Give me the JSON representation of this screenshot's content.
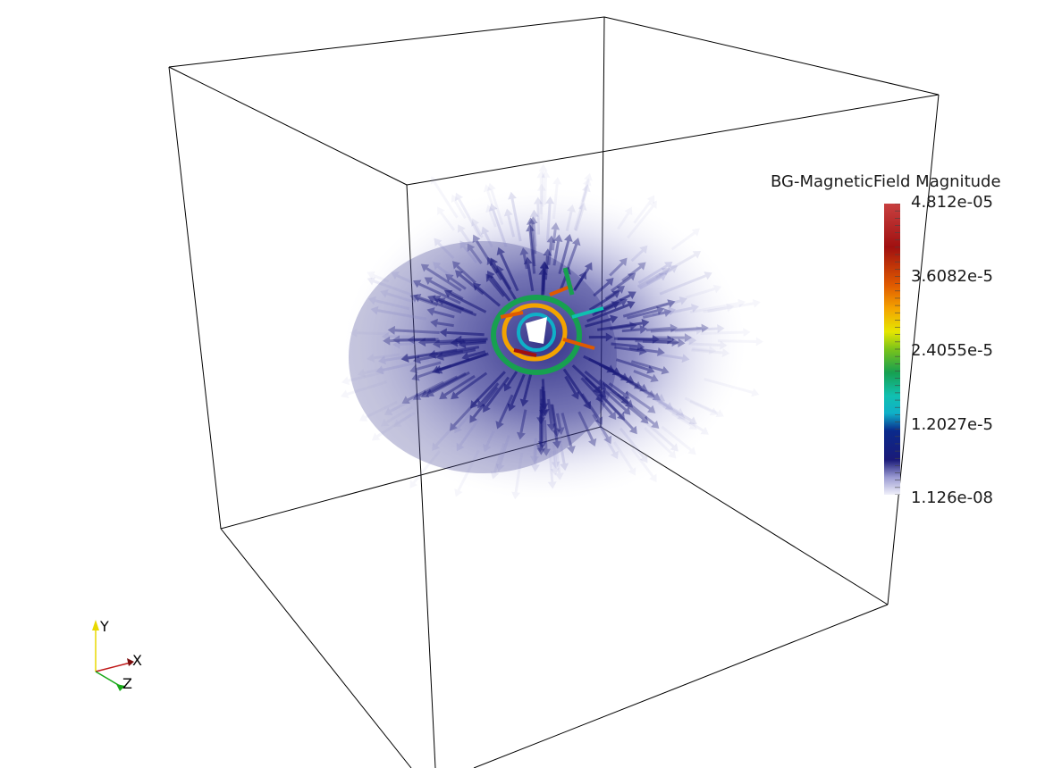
{
  "legend": {
    "title": "BG-MagneticField Magnitude",
    "labels": [
      "4.812e-05",
      "3.6082e-5",
      "2.4055e-5",
      "1.2027e-5",
      "1.126e-08"
    ],
    "colormap": [
      "#f5f5fb",
      "#9a9ad2",
      "#1a1a78",
      "#0a2a8c",
      "#0fb0c8",
      "#10c0b0",
      "#17a050",
      "#7ac31a",
      "#e6e600",
      "#f4a300",
      "#e05a00",
      "#a01010",
      "#c84040"
    ]
  },
  "axes_triad": {
    "x_label": "X",
    "y_label": "Y",
    "z_label": "Z",
    "x_color": "#c01818",
    "y_color": "#e8d800",
    "z_color": "#18a818"
  },
  "colors": {
    "outline": "#000000",
    "arrow_low": "#1a1a7a",
    "background": "#ffffff"
  }
}
